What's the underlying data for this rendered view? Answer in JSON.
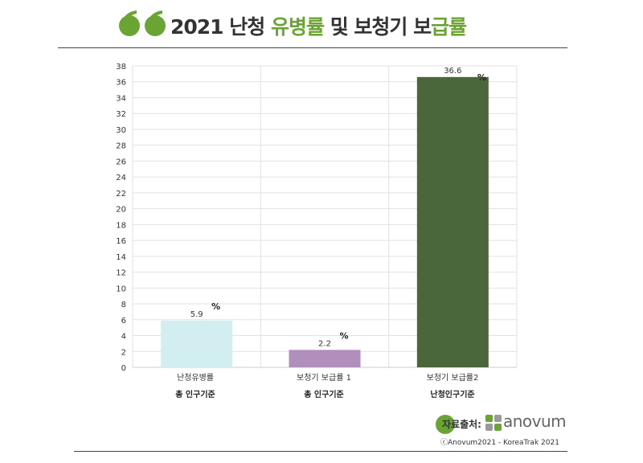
{
  "header": {
    "title_prefix": "2021 난청 ",
    "title_accent_1": "유병률",
    "title_mid": " 및 보청기 보",
    "title_accent_2": "급률"
  },
  "chart_data": {
    "type": "bar",
    "categories": [
      "난청유병률",
      "보청기 보급률 1",
      "보청기 보급률2"
    ],
    "subcategories": [
      "총 인구기준",
      "총 인구기준",
      "난청인구기준"
    ],
    "values": [
      5.9,
      2.2,
      36.6
    ],
    "value_labels": [
      "5.9",
      "2.2",
      "36.6"
    ],
    "unit_labels": [
      "%",
      "%",
      "%"
    ],
    "bar_colors": [
      "#d3eef0",
      "#b08fbd",
      "#4a663b"
    ],
    "ylim": [
      0,
      38
    ],
    "yticks": [
      0,
      2,
      4,
      6,
      8,
      10,
      12,
      14,
      16,
      18,
      20,
      22,
      24,
      26,
      28,
      30,
      32,
      34,
      36,
      38
    ],
    "grid": true,
    "legend": "none"
  },
  "source": {
    "label": "자료출처:",
    "brand": "anovum",
    "copyright": "ⓒAnovum2021 - KoreaTrak 2021"
  },
  "colors": {
    "accent": "#6aa534",
    "grid": "#e2e2e2",
    "axis": "#cccccc"
  }
}
